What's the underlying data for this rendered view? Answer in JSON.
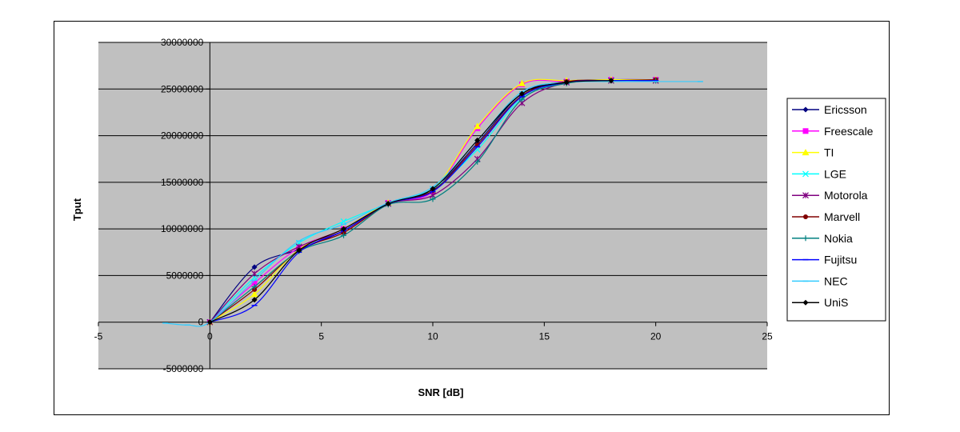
{
  "chart_data": {
    "type": "scatter",
    "title": "",
    "xlabel": "SNR [dB]",
    "ylabel": "Tput",
    "xlim": [
      -5,
      25
    ],
    "ylim": [
      -5000000,
      30000000
    ],
    "xticks": [
      "-5",
      "0",
      "5",
      "10",
      "15",
      "20",
      "25"
    ],
    "yticks": [
      "-5000000",
      "0",
      "5000000",
      "10000000",
      "15000000",
      "20000000",
      "25000000",
      "30000000"
    ],
    "grid": "horizontal",
    "plot_background": "#c0c0c0",
    "legend_position": "right",
    "series": [
      {
        "name": "Ericsson",
        "color": "#000080",
        "marker": "diamond",
        "x": [
          0,
          2,
          4,
          6,
          8,
          10,
          12,
          14,
          16,
          18,
          20
        ],
        "y": [
          0,
          5900000,
          7800000,
          9800000,
          12700000,
          14200000,
          19200000,
          24500000,
          25800000,
          26000000,
          26000000
        ]
      },
      {
        "name": "Freescale",
        "color": "#ff00ff",
        "marker": "square",
        "x": [
          0,
          2,
          4,
          6,
          8,
          10,
          12,
          14,
          16,
          18,
          20
        ],
        "y": [
          0,
          4200000,
          8000000,
          10000000,
          12800000,
          14000000,
          20800000,
          25500000,
          25800000,
          26000000,
          26000000
        ]
      },
      {
        "name": "TI",
        "color": "#ffff00",
        "marker": "triangle",
        "x": [
          0,
          2,
          4,
          6,
          8,
          10,
          12,
          14,
          16,
          18,
          20
        ],
        "y": [
          0,
          3000000,
          7800000,
          10000000,
          12800000,
          14200000,
          21000000,
          25600000,
          25900000,
          26000000,
          26000000
        ]
      },
      {
        "name": "LGE",
        "color": "#00ffff",
        "marker": "x",
        "x": [
          0,
          2,
          4,
          6,
          8,
          10,
          12,
          14,
          16,
          18,
          20
        ],
        "y": [
          0,
          4800000,
          8500000,
          10800000,
          12700000,
          14300000,
          18500000,
          24000000,
          25700000,
          25900000,
          25900000
        ]
      },
      {
        "name": "Motorola",
        "color": "#800080",
        "marker": "star",
        "x": [
          0,
          2,
          4,
          6,
          8,
          10,
          12,
          14,
          16,
          18,
          20
        ],
        "y": [
          0,
          5200000,
          8100000,
          9800000,
          12700000,
          13600000,
          17500000,
          23500000,
          25700000,
          25900000,
          25900000
        ]
      },
      {
        "name": "Marvell",
        "color": "#800000",
        "marker": "circle",
        "x": [
          0,
          2,
          4,
          6,
          8,
          10,
          12,
          14,
          16,
          18,
          20
        ],
        "y": [
          0,
          3500000,
          7700000,
          9600000,
          12700000,
          14100000,
          19000000,
          24300000,
          25800000,
          25900000,
          26000000
        ]
      },
      {
        "name": "Nokia",
        "color": "#008080",
        "marker": "plus",
        "x": [
          0,
          2,
          4,
          6,
          8,
          10,
          12,
          14,
          16,
          18,
          20
        ],
        "y": [
          0,
          3800000,
          7600000,
          9300000,
          12600000,
          13200000,
          17200000,
          23900000,
          25600000,
          25900000,
          25900000
        ]
      },
      {
        "name": "Fujitsu",
        "color": "#0000ff",
        "marker": "dash",
        "x": [
          0,
          2,
          4,
          6,
          8,
          10,
          12,
          14,
          16,
          18,
          20
        ],
        "y": [
          0,
          1800000,
          7500000,
          9800000,
          12700000,
          14000000,
          18800000,
          24200000,
          25700000,
          25900000,
          25900000
        ]
      },
      {
        "name": "NEC",
        "color": "#33ccff",
        "marker": "dash",
        "x": [
          -2,
          -1,
          0,
          2,
          4,
          6,
          8,
          10,
          12,
          14,
          16,
          18,
          20,
          22
        ],
        "y": [
          -100000,
          -300000,
          0,
          4500000,
          8700000,
          10500000,
          12800000,
          14500000,
          19500000,
          24700000,
          25700000,
          25800000,
          25800000,
          25800000
        ]
      },
      {
        "name": "UniS",
        "color": "#000000",
        "marker": "diamond",
        "x": [
          0,
          2,
          4,
          6,
          8,
          10,
          12,
          14,
          16,
          18
        ],
        "y": [
          0,
          2400000,
          7700000,
          10000000,
          12700000,
          14300000,
          19500000,
          24500000,
          25700000,
          25900000
        ]
      }
    ]
  }
}
